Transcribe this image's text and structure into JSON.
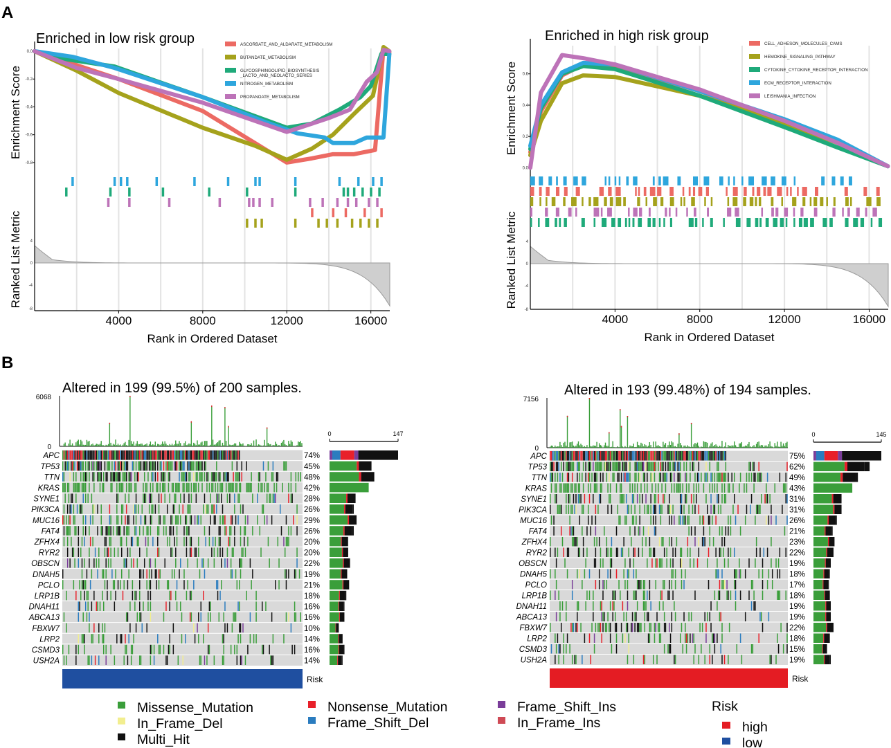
{
  "panel_labels": {
    "a": "A",
    "b": "B"
  },
  "colors": {
    "series": [
      "#ec6a63",
      "#a5a21c",
      "#1faa7a",
      "#2ea6dd",
      "#bd73b8"
    ],
    "missense": "#3a9e3a",
    "nonsense": "#e8202a",
    "frame_shift_ins": "#7a3d99",
    "in_frame_del": "#f2ee8f",
    "frame_shift_del": "#2a7cbf",
    "in_frame_ins": "#cf4a55",
    "multi_hit": "#111111",
    "risk_high": "#e41c23",
    "risk_low": "#1f4fa0",
    "no_alt": "#d9d9d9",
    "rank_fill": "#cfcfcf",
    "grid": "#e3e3e3"
  },
  "chart_data": [
    {
      "type": "line",
      "panel": "A-left",
      "title": "Enriched in low risk group",
      "xlabel": "Rank in Ordered Dataset",
      "ylabel_top": "Enrichment Score",
      "ylabel_bottom": "Ranked List Metric",
      "xlim": [
        0,
        16900
      ],
      "ylim": [
        -0.9,
        0.02
      ],
      "x_ticks": [
        "4000",
        "8000",
        "12000",
        "16000"
      ],
      "x_tick_values": [
        4000,
        8000,
        12000,
        16000
      ],
      "y_ticks": [
        "0.0",
        "-0.2",
        "-0.4",
        "-0.6",
        "-0.8"
      ],
      "y_tick_values": [
        0.0,
        -0.2,
        -0.4,
        -0.6,
        -0.8
      ],
      "rank_ticks": [
        "4",
        "0",
        "-4",
        "-8"
      ],
      "series": [
        {
          "name": "ASCORBATE_AND_ALDARATE_METABOLISM",
          "color": "#ec6a63",
          "x": [
            0,
            2000,
            4000,
            8000,
            12000,
            13200,
            14200,
            15200,
            16200,
            16600,
            16880
          ],
          "y": [
            0,
            -0.1,
            -0.2,
            -0.43,
            -0.8,
            -0.77,
            -0.74,
            -0.74,
            -0.71,
            0.02,
            -0.01
          ]
        },
        {
          "name": "BUTANDATE_METABOLISM",
          "color": "#a5a21c",
          "x": [
            0,
            2000,
            4000,
            8000,
            10500,
            12000,
            13200,
            14200,
            15200,
            16100,
            16600,
            16880
          ],
          "y": [
            0,
            -0.14,
            -0.3,
            -0.55,
            -0.68,
            -0.78,
            -0.7,
            -0.6,
            -0.45,
            -0.32,
            0.03,
            0
          ]
        },
        {
          "name": "GLYCOSPHINGOLIPID_BIOSYNTHESIS _LACTO_AND_NEOLACTO_SERIES",
          "color": "#1faa7a",
          "x": [
            0,
            1600,
            3800,
            8000,
            12000,
            13200,
            14500,
            15500,
            16000,
            16500,
            16880
          ],
          "y": [
            0,
            -0.06,
            -0.11,
            -0.33,
            -0.55,
            -0.52,
            -0.42,
            -0.33,
            -0.25,
            -0.02,
            -0.02
          ]
        },
        {
          "name": "NITROGEN_METABOLISM",
          "color": "#2ea6dd",
          "x": [
            0,
            1800,
            3800,
            8000,
            11000,
            12500,
            13800,
            14200,
            15200,
            15800,
            16600,
            16880
          ],
          "y": [
            0,
            -0.04,
            -0.12,
            -0.33,
            -0.51,
            -0.59,
            -0.62,
            -0.66,
            -0.66,
            -0.62,
            -0.62,
            -0.02
          ]
        },
        {
          "name": "PROPANOATE_METABOLISM",
          "color": "#bd73b8",
          "x": [
            0,
            2000,
            4000,
            8000,
            12000,
            13000,
            14000,
            15000,
            15800,
            16300,
            16600,
            16880
          ],
          "y": [
            0,
            -0.12,
            -0.2,
            -0.37,
            -0.58,
            -0.53,
            -0.48,
            -0.42,
            -0.22,
            -0.15,
            0.01,
            0
          ]
        }
      ],
      "hit_rows": [
        {
          "color": "#2ea6dd",
          "x": [
            1800,
            3800,
            4100,
            4400,
            5800,
            7600,
            9200,
            10500,
            10700,
            12400,
            14500,
            15400,
            16100,
            16500
          ]
        },
        {
          "color": "#1faa7a",
          "x": [
            1500,
            3600,
            4500,
            6100,
            8300,
            10100,
            12400,
            14700,
            14900,
            15200,
            15600,
            16000,
            16400
          ]
        },
        {
          "color": "#bd73b8",
          "x": [
            3500,
            4500,
            6400,
            8800,
            10200,
            10400,
            10700,
            11300,
            13100,
            13700,
            14400,
            14900,
            15300,
            15900,
            16300
          ]
        },
        {
          "color": "#ec6a63",
          "x": [
            13200,
            14200,
            14800,
            15700,
            16500
          ]
        },
        {
          "color": "#a5a21c",
          "x": [
            10100,
            10500,
            10800,
            12400,
            13500,
            13900,
            14400,
            15100,
            15500,
            15900,
            16300
          ]
        }
      ]
    },
    {
      "type": "line",
      "panel": "A-right",
      "title": "Enriched in high risk group",
      "xlabel": "Rank in Ordered Dataset",
      "ylabel_top": "Enrichment Score",
      "ylabel_bottom": "Ranked List Metric",
      "xlim": [
        0,
        16900
      ],
      "ylim": [
        -0.02,
        0.78
      ],
      "x_ticks": [
        "4000",
        "8000",
        "12000",
        "16000"
      ],
      "x_tick_values": [
        4000,
        8000,
        12000,
        16000
      ],
      "y_ticks": [
        "0.6",
        "0.4",
        "0.2",
        "0.0"
      ],
      "y_tick_values": [
        0.6,
        0.4,
        0.2,
        0.0
      ],
      "rank_ticks": [
        "4",
        "0",
        "-4",
        "-8"
      ],
      "series": [
        {
          "name": "CELL_ADHESON_MOLECULES_CAMS",
          "color": "#ec6a63",
          "x": [
            0,
            500,
            1500,
            2500,
            4000,
            8000,
            12000,
            14500,
            16880
          ],
          "y": [
            0.1,
            0.36,
            0.59,
            0.66,
            0.65,
            0.49,
            0.29,
            0.16,
            0.01
          ]
        },
        {
          "name": "HEMOKINE_SIGNALING_PATHWAY",
          "color": "#a5a21c",
          "x": [
            0,
            500,
            1500,
            2500,
            4000,
            8000,
            12000,
            14500,
            16880
          ],
          "y": [
            0.08,
            0.3,
            0.54,
            0.59,
            0.58,
            0.46,
            0.28,
            0.16,
            0.01
          ]
        },
        {
          "name": "CYTOKINE_CYTOKINE_RECEPTOR_INTERACTION",
          "color": "#1faa7a",
          "x": [
            0,
            500,
            1500,
            2500,
            4000,
            8000,
            12000,
            14500,
            16880
          ],
          "y": [
            0.12,
            0.38,
            0.6,
            0.65,
            0.63,
            0.46,
            0.26,
            0.13,
            0.01
          ]
        },
        {
          "name": "ECM_RECEPTOR_INTERACTION",
          "color": "#2ea6dd",
          "x": [
            0,
            500,
            1500,
            2500,
            4000,
            8000,
            12000,
            14500,
            16880
          ],
          "y": [
            0.14,
            0.4,
            0.61,
            0.67,
            0.66,
            0.49,
            0.31,
            0.18,
            0.01
          ]
        },
        {
          "name": "LEISHMANIA_INFECTION",
          "color": "#bd73b8",
          "x": [
            0,
            500,
            1500,
            2500,
            4000,
            8000,
            12000,
            14500,
            16880
          ],
          "y": [
            0.0,
            0.48,
            0.72,
            0.7,
            0.66,
            0.5,
            0.3,
            0.16,
            0.01
          ]
        }
      ],
      "hit_rows": [
        {
          "color": "#2ea6dd",
          "band_start": 0,
          "band_end": 12800,
          "density": 0.55,
          "extra": [
            13800,
            14300,
            14700,
            15100
          ]
        },
        {
          "color": "#ec6a63",
          "band_start": 0,
          "band_end": 13000,
          "density": 0.55,
          "extra": [
            13500,
            14900,
            15800,
            16400
          ]
        },
        {
          "color": "#a5a21c",
          "band_start": 0,
          "band_end": 16700,
          "density": 0.6,
          "extra": []
        },
        {
          "color": "#bd73b8",
          "band_start": 0,
          "band_end": 16700,
          "density": 0.55,
          "extra": []
        },
        {
          "color": "#1faa7a",
          "band_start": 0,
          "band_end": 16800,
          "density": 0.7,
          "extra": []
        }
      ]
    },
    {
      "type": "heatmap",
      "panel": "B-left",
      "title": "Altered in 199 (99.5%) of 200 samples.",
      "samples": 200,
      "top_max_label": "6068",
      "top_zero_label": "0",
      "right_axis_labels": [
        "0",
        "147"
      ],
      "right_axis_max": 147,
      "risk_label": "Risk",
      "risk_group": "low",
      "genes": [
        "APC",
        "TP53",
        "TTN",
        "KRAS",
        "SYNE1",
        "PIK3CA",
        "MUC16",
        "FAT4",
        "ZFHX4",
        "RYR2",
        "OBSCN",
        "DNAH5",
        "PCLO",
        "LRP1B",
        "DNAH11",
        "ABCA13",
        "FBXW7",
        "LRP2",
        "CSMD3",
        "USH2A"
      ],
      "percent": [
        "74%",
        "45%",
        "48%",
        "42%",
        "28%",
        "26%",
        "29%",
        "26%",
        "20%",
        "20%",
        "22%",
        "19%",
        "21%",
        "18%",
        "16%",
        "16%",
        "10%",
        "14%",
        "16%",
        "14%"
      ],
      "counts": [
        147,
        90,
        96,
        84,
        56,
        52,
        58,
        52,
        40,
        40,
        44,
        38,
        42,
        36,
        32,
        32,
        20,
        28,
        32,
        28
      ]
    },
    {
      "type": "heatmap",
      "panel": "B-right",
      "title": "Altered in 193 (99.48%) of 194 samples.",
      "samples": 194,
      "top_max_label": "7156",
      "top_zero_label": "0",
      "right_axis_labels": [
        "0",
        "145"
      ],
      "right_axis_max": 145,
      "risk_label": "Risk",
      "risk_group": "high",
      "genes": [
        "APC",
        "TP53",
        "TTN",
        "KRAS",
        "SYNE1",
        "PIK3CA",
        "MUC16",
        "FAT4",
        "ZFHX4",
        "RYR2",
        "OBSCN",
        "DNAH5",
        "PCLO",
        "LRP1B",
        "DNAH11",
        "ABCA13",
        "FBXW7",
        "LRP2",
        "CSMD3",
        "USH2A"
      ],
      "percent": [
        "75%",
        "62%",
        "49%",
        "43%",
        "31%",
        "31%",
        "26%",
        "21%",
        "23%",
        "22%",
        "19%",
        "18%",
        "17%",
        "18%",
        "19%",
        "19%",
        "22%",
        "18%",
        "15%",
        "19%"
      ],
      "counts": [
        145,
        120,
        95,
        83,
        60,
        60,
        50,
        41,
        45,
        43,
        37,
        35,
        33,
        35,
        37,
        37,
        43,
        35,
        29,
        37
      ]
    }
  ],
  "legend": {
    "items": [
      {
        "label": "Missense_Mutation",
        "color": "#3a9e3a"
      },
      {
        "label": "In_Frame_Del",
        "color": "#f2ee8f"
      },
      {
        "label": "Multi_Hit",
        "color": "#111111"
      },
      {
        "label": "Nonsense_Mutation",
        "color": "#e8202a"
      },
      {
        "label": "Frame_Shift_Del",
        "color": "#2a7cbf"
      },
      {
        "label": "Frame_Shift_Ins",
        "color": "#7a3d99"
      },
      {
        "label": "In_Frame_Ins",
        "color": "#cf4a55"
      }
    ],
    "risk_title": "Risk",
    "risk_items": [
      {
        "label": "high",
        "color": "#e41c23"
      },
      {
        "label": "low",
        "color": "#1f4fa0"
      }
    ]
  }
}
